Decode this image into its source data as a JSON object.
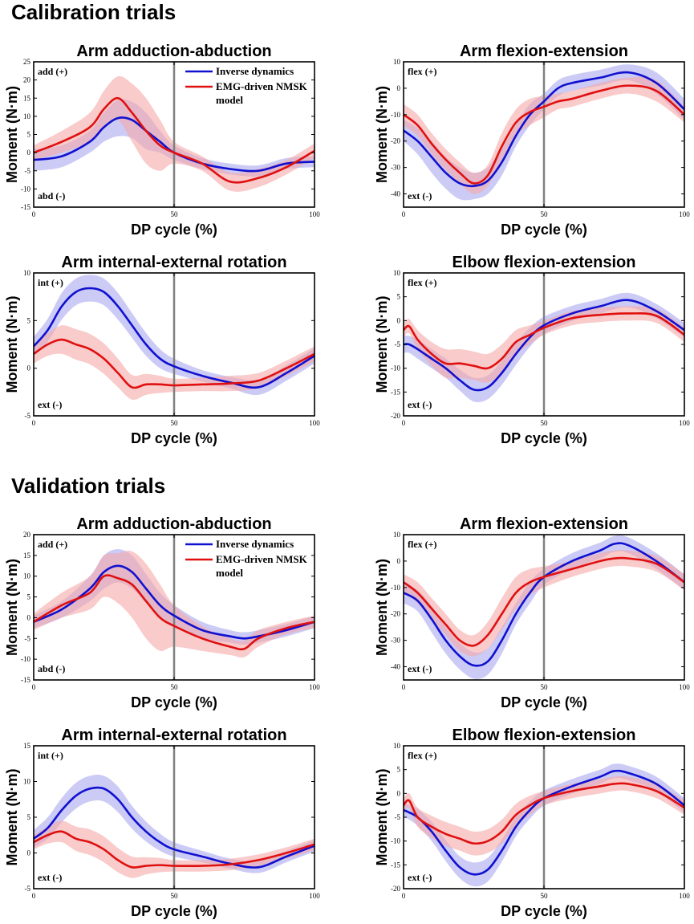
{
  "colors": {
    "inverse_dynamics": "#1010d0",
    "inverse_dynamics_band": "#a8a8f0",
    "emg_model": "#e01010",
    "emg_model_band": "#f5a8a8",
    "divider": "#808080"
  },
  "legend": {
    "inverse_dynamics": "Inverse dynamics",
    "emg_model_line1": "EMG-driven NMSK",
    "emg_model_line2": "model"
  },
  "sections": [
    {
      "title": "Calibration trials"
    },
    {
      "title": "Validation trials"
    }
  ],
  "chart_data": [
    {
      "type": "line",
      "section": "Calibration trials",
      "title": "Arm adduction-abduction",
      "xlabel": "DP cycle (%)",
      "ylabel": "Moment (N·m)",
      "xlim": [
        0,
        100
      ],
      "ylim": [
        -15,
        25
      ],
      "yticks": [
        "25",
        "20",
        "15",
        "10",
        "5",
        "0",
        "-5",
        "-10",
        "-15"
      ],
      "xticks": [
        "0",
        "50",
        "100"
      ],
      "vline": 50,
      "pos_label": "add (+)",
      "neg_label": "abd (-)",
      "legend": "top-right",
      "x": [
        0,
        10,
        20,
        25,
        30,
        35,
        40,
        45,
        50,
        60,
        70,
        80,
        90,
        100
      ],
      "series": [
        {
          "name": "Inverse dynamics",
          "values": [
            -2,
            -1,
            3,
            7,
            9.5,
            9,
            6,
            3,
            0,
            -3,
            -4.5,
            -5,
            -3,
            -2.5
          ],
          "sd": [
            3,
            3,
            3,
            4,
            5,
            5,
            5,
            3,
            2,
            1.5,
            1.5,
            1.5,
            1.5,
            1.5
          ]
        },
        {
          "name": "EMG-driven NMSK model",
          "values": [
            0,
            3,
            7,
            12,
            15,
            11,
            6,
            2,
            0,
            -3,
            -8,
            -7,
            -4,
            0.5
          ],
          "sd": [
            2,
            3,
            4,
            5,
            6,
            8,
            9,
            7,
            3,
            2,
            2.5,
            2.5,
            2,
            2
          ]
        }
      ]
    },
    {
      "type": "line",
      "section": "Calibration trials",
      "title": "Arm flexion-extension",
      "xlabel": "DP cycle (%)",
      "ylabel": "",
      "xlim": [
        0,
        100
      ],
      "ylim": [
        -45,
        10
      ],
      "yticks": [
        "10",
        "0",
        "-10",
        "-20",
        "-30",
        "-40"
      ],
      "xticks": [
        "0",
        "50",
        "100"
      ],
      "vline": 50,
      "pos_label": "flex (+)",
      "neg_label": "ext (-)",
      "legend": "none",
      "x": [
        0,
        5,
        10,
        15,
        20,
        25,
        30,
        35,
        40,
        45,
        50,
        55,
        60,
        70,
        80,
        90,
        100
      ],
      "series": [
        {
          "name": "Inverse dynamics",
          "values": [
            -16,
            -20,
            -26,
            -32,
            -36,
            -37,
            -35,
            -28,
            -18,
            -10,
            -5,
            0,
            2,
            4,
            6,
            2,
            -8
          ],
          "sd": [
            4,
            5,
            6,
            6,
            6,
            5,
            5,
            5,
            4,
            4,
            3,
            3,
            3,
            3,
            3,
            4,
            4
          ]
        },
        {
          "name": "EMG-driven NMSK model",
          "values": [
            -10,
            -14,
            -21,
            -27,
            -32,
            -36,
            -33,
            -22,
            -13,
            -9,
            -7,
            -5,
            -4,
            -1,
            1,
            -1,
            -10
          ],
          "sd": [
            4,
            4,
            4,
            4,
            4,
            4,
            4,
            5,
            5,
            5,
            4,
            3,
            3,
            3,
            3,
            4,
            3
          ]
        }
      ]
    },
    {
      "type": "line",
      "section": "Calibration trials",
      "title": "Arm internal-external rotation",
      "xlabel": "DP cycle (%)",
      "ylabel": "Moment (N·m)",
      "xlim": [
        0,
        100
      ],
      "ylim": [
        -5,
        10
      ],
      "yticks": [
        "10",
        "5",
        "0",
        "-5"
      ],
      "xticks": [
        "0",
        "50",
        "100"
      ],
      "vline": 50,
      "pos_label": "int (+)",
      "neg_label": "ext (-)",
      "legend": "none",
      "x": [
        0,
        5,
        10,
        15,
        20,
        25,
        30,
        35,
        40,
        45,
        50,
        60,
        70,
        80,
        90,
        100
      ],
      "series": [
        {
          "name": "Inverse dynamics",
          "values": [
            2.3,
            4,
            6.5,
            8,
            8.4,
            8,
            6.5,
            4.5,
            2.5,
            1,
            0.2,
            -0.8,
            -1.5,
            -2,
            -0.5,
            1.3
          ],
          "sd": [
            1,
            1.2,
            1.4,
            1.4,
            1.4,
            1.4,
            1.4,
            1.3,
            1.2,
            1,
            0.8,
            0.6,
            0.6,
            0.8,
            0.8,
            0.8
          ]
        },
        {
          "name": "EMG-driven NMSK model",
          "values": [
            1.5,
            2.5,
            3,
            2.5,
            2,
            1,
            -0.5,
            -2,
            -1.7,
            -1.7,
            -1.8,
            -1.7,
            -1.6,
            -1.3,
            0,
            1.5
          ],
          "sd": [
            1,
            1.2,
            1.5,
            1.6,
            1.6,
            1.6,
            1.5,
            1.3,
            1.1,
            0.9,
            0.7,
            0.7,
            0.8,
            0.8,
            0.8,
            0.8
          ]
        }
      ]
    },
    {
      "type": "line",
      "section": "Calibration trials",
      "title": "Elbow flexion-extension",
      "xlabel": "DP cycle (%)",
      "ylabel": "",
      "xlim": [
        0,
        100
      ],
      "ylim": [
        -20,
        10
      ],
      "yticks": [
        "10",
        "5",
        "0",
        "-5",
        "-10",
        "-15",
        "-20"
      ],
      "xticks": [
        "0",
        "50",
        "100"
      ],
      "vline": 50,
      "pos_label": "flex (+)",
      "neg_label": "ext (-)",
      "legend": "none",
      "x": [
        0,
        2,
        5,
        10,
        15,
        20,
        25,
        30,
        35,
        40,
        45,
        50,
        60,
        70,
        80,
        90,
        100
      ],
      "series": [
        {
          "name": "Inverse dynamics",
          "values": [
            -5,
            -5,
            -6,
            -8,
            -10,
            -12.5,
            -14.5,
            -14,
            -11,
            -7,
            -3.5,
            -1,
            1.5,
            3,
            4.3,
            2,
            -2
          ],
          "sd": [
            1.8,
            1.8,
            2,
            2,
            2,
            2.2,
            2.5,
            2.5,
            2.5,
            2.3,
            2,
            1.8,
            1.6,
            1.5,
            1.5,
            1.5,
            1.5
          ]
        },
        {
          "name": "EMG-driven NMSK model",
          "values": [
            -2,
            -1.2,
            -4,
            -7,
            -9,
            -9,
            -9.5,
            -10,
            -8,
            -4.5,
            -3,
            -1.5,
            0.5,
            1.2,
            1.5,
            1,
            -3
          ],
          "sd": [
            1.5,
            1.5,
            2,
            2.5,
            3,
            3,
            3,
            3,
            3,
            2.5,
            2,
            1.5,
            1.5,
            1.5,
            1.5,
            1.5,
            1.5
          ]
        }
      ]
    },
    {
      "type": "line",
      "section": "Validation trials",
      "title": "Arm adduction-abduction",
      "xlabel": "DP cycle (%)",
      "ylabel": "Moment (N·m)",
      "xlim": [
        0,
        100
      ],
      "ylim": [
        -15,
        20
      ],
      "yticks": [
        "20",
        "15",
        "10",
        "5",
        "0",
        "-5",
        "-10",
        "-15"
      ],
      "xticks": [
        "0",
        "50",
        "100"
      ],
      "vline": 50,
      "pos_label": "add (+)",
      "neg_label": "abd (-)",
      "legend": "top-right",
      "x": [
        0,
        10,
        20,
        25,
        30,
        35,
        40,
        45,
        50,
        60,
        70,
        75,
        80,
        90,
        100
      ],
      "series": [
        {
          "name": "Inverse dynamics",
          "values": [
            -1,
            2,
            7,
            11,
            12.5,
            11,
            7,
            3,
            0.5,
            -3,
            -4.5,
            -5,
            -4.5,
            -3,
            -1
          ],
          "sd": [
            1.5,
            2,
            3,
            4,
            4,
            4,
            3.5,
            3,
            2.5,
            2,
            1.5,
            1.5,
            1.5,
            1.5,
            1.5
          ]
        },
        {
          "name": "EMG-driven NMSK model",
          "values": [
            -1,
            3,
            6,
            10,
            9.5,
            8,
            4,
            0,
            -2,
            -5,
            -7,
            -7.5,
            -5,
            -2.5,
            -1
          ],
          "sd": [
            2,
            3,
            4,
            5,
            6,
            8,
            9,
            8,
            5,
            3,
            2,
            2,
            2,
            1.5,
            1.5
          ]
        }
      ]
    },
    {
      "type": "line",
      "section": "Validation trials",
      "title": "Arm flexion-extension",
      "xlabel": "DP cycle (%)",
      "ylabel": "",
      "xlim": [
        0,
        100
      ],
      "ylim": [
        -45,
        10
      ],
      "yticks": [
        "10",
        "0",
        "-10",
        "-20",
        "-30",
        "-40"
      ],
      "xticks": [
        "0",
        "50",
        "100"
      ],
      "vline": 50,
      "pos_label": "flex (+)",
      "neg_label": "ext (-)",
      "legend": "none",
      "x": [
        0,
        5,
        10,
        15,
        20,
        25,
        30,
        35,
        40,
        45,
        50,
        60,
        70,
        75,
        80,
        90,
        100
      ],
      "series": [
        {
          "name": "Inverse dynamics",
          "values": [
            -12,
            -15,
            -22,
            -30,
            -36,
            -39.5,
            -38,
            -30,
            -20,
            -12,
            -6,
            0,
            4,
            6.5,
            6,
            0,
            -8
          ],
          "sd": [
            4,
            4,
            5,
            5,
            5,
            5,
            5,
            5,
            4,
            4,
            3,
            3,
            3,
            3,
            3,
            3,
            3
          ]
        },
        {
          "name": "EMG-driven NMSK model",
          "values": [
            -8,
            -12,
            -18,
            -24,
            -30,
            -32,
            -28,
            -20,
            -12,
            -8,
            -6,
            -3,
            0,
            1,
            1,
            -1,
            -8
          ],
          "sd": [
            3,
            4,
            4,
            4,
            4,
            4,
            5,
            6,
            6,
            5,
            4,
            3,
            3,
            3,
            3,
            3,
            3
          ]
        }
      ]
    },
    {
      "type": "line",
      "section": "Validation trials",
      "title": "Arm internal-external rotation",
      "xlabel": "DP cycle (%)",
      "ylabel": "Moment (N·m)",
      "xlim": [
        0,
        100
      ],
      "ylim": [
        -5,
        15
      ],
      "yticks": [
        "15",
        "10",
        "5",
        "0",
        "-5"
      ],
      "xticks": [
        "0",
        "50",
        "100"
      ],
      "vline": 50,
      "pos_label": "int (+)",
      "neg_label": "ext (-)",
      "legend": "none",
      "x": [
        0,
        5,
        10,
        15,
        20,
        25,
        30,
        35,
        40,
        45,
        50,
        60,
        70,
        80,
        90,
        100
      ],
      "series": [
        {
          "name": "Inverse dynamics",
          "values": [
            2,
            3.5,
            6,
            8,
            9,
            9,
            7.5,
            5,
            3,
            1.5,
            0.5,
            -0.5,
            -1.5,
            -2,
            -0.5,
            1
          ],
          "sd": [
            1.2,
            1.5,
            1.7,
            1.8,
            1.8,
            1.8,
            1.8,
            1.6,
            1.4,
            1.2,
            1,
            0.8,
            0.7,
            0.8,
            0.8,
            0.8
          ]
        },
        {
          "name": "EMG-driven NMSK model",
          "values": [
            1.5,
            2.5,
            3,
            2,
            1.5,
            0.5,
            -1,
            -2,
            -1.8,
            -1.7,
            -1.8,
            -1.8,
            -1.6,
            -1,
            0,
            1.2
          ],
          "sd": [
            1,
            1.2,
            1.5,
            1.7,
            1.8,
            1.8,
            1.7,
            1.5,
            1.2,
            1,
            0.8,
            0.8,
            0.8,
            0.8,
            0.8,
            0.8
          ]
        }
      ]
    },
    {
      "type": "line",
      "section": "Validation trials",
      "title": "Elbow flexion-extension",
      "xlabel": "DP cycle (%)",
      "ylabel": "",
      "xlim": [
        0,
        100
      ],
      "ylim": [
        -20,
        10
      ],
      "yticks": [
        "10",
        "5",
        "0",
        "-5",
        "-10",
        "-15",
        "-20"
      ],
      "xticks": [
        "0",
        "50",
        "100"
      ],
      "vline": 50,
      "pos_label": "flex (+)",
      "neg_label": "ext (-)",
      "legend": "none",
      "x": [
        0,
        2,
        5,
        10,
        15,
        20,
        25,
        30,
        35,
        40,
        45,
        50,
        60,
        70,
        75,
        80,
        90,
        100
      ],
      "series": [
        {
          "name": "Inverse dynamics",
          "values": [
            -3.5,
            -4,
            -5,
            -8,
            -12,
            -15.5,
            -17,
            -16,
            -12,
            -7,
            -3.5,
            -1,
            1.5,
            3.5,
            4.7,
            4.3,
            2,
            -2.5
          ],
          "sd": [
            1.5,
            1.5,
            1.8,
            2,
            2.2,
            2.3,
            2.5,
            2.5,
            2.3,
            2,
            1.8,
            1.6,
            1.5,
            1.5,
            1.5,
            1.5,
            1.5,
            1.5
          ]
        },
        {
          "name": "EMG-driven NMSK model",
          "values": [
            -2.5,
            -1.5,
            -5,
            -7,
            -8.5,
            -9.5,
            -10.5,
            -10,
            -8,
            -4.5,
            -2.5,
            -1,
            0.5,
            1.5,
            2,
            2,
            0.5,
            -3
          ],
          "sd": [
            1.5,
            1.5,
            2,
            2.3,
            2.5,
            2.5,
            2.5,
            2.5,
            2.5,
            2.3,
            2,
            1.5,
            1.5,
            1.5,
            1.5,
            1.5,
            1.5,
            1.5
          ]
        }
      ]
    }
  ]
}
